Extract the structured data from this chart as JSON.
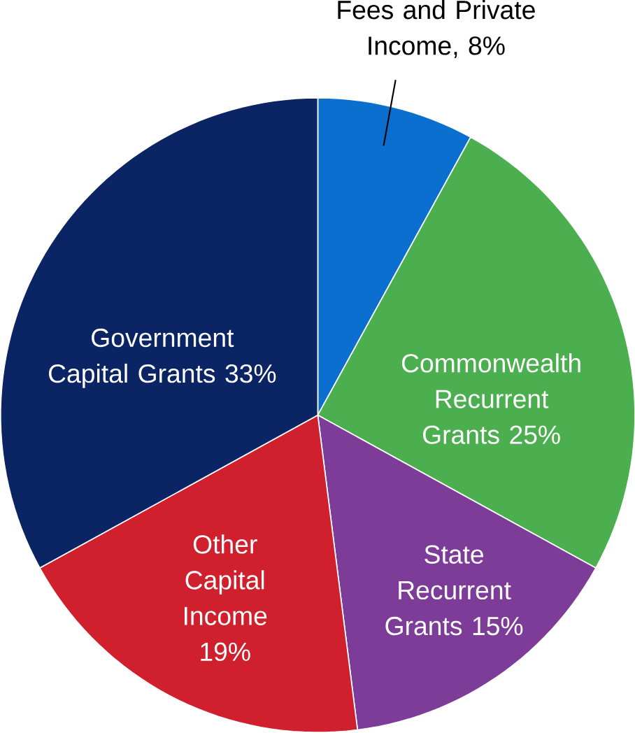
{
  "chart_data": {
    "type": "pie",
    "categories": [
      "Fees and Private Income, 8%",
      "Commonwealth Recurrent Grants 25%",
      "State Recurrent Grants 15%",
      "Other Capital Income 19%",
      "Government Capital Grants 33%"
    ],
    "values": [
      8,
      25,
      15,
      19,
      33
    ],
    "colors": [
      "#0a6fce",
      "#4caf4f",
      "#7d3c98",
      "#d0202e",
      "#0a2464"
    ]
  }
}
